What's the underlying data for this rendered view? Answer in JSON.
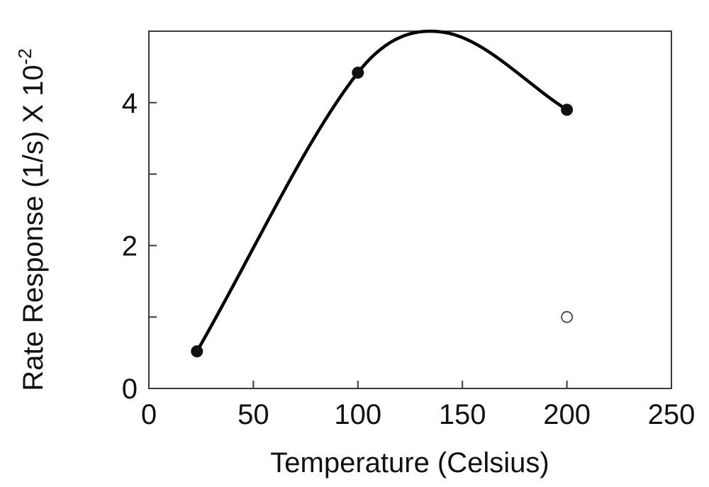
{
  "chart_data": {
    "type": "scatter",
    "title": "",
    "xlabel": "Temperature (Celsius)",
    "ylabel_main": "Rate Response (1/s) X 10",
    "ylabel_exponent": "-2",
    "xlim": [
      0,
      250
    ],
    "ylim": [
      0,
      5
    ],
    "x_ticks": [
      {
        "value": 0,
        "label": "0"
      },
      {
        "value": 50,
        "label": "50"
      },
      {
        "value": 100,
        "label": "100"
      },
      {
        "value": 150,
        "label": "150"
      },
      {
        "value": 200,
        "label": "200"
      },
      {
        "value": 250,
        "label": "250"
      }
    ],
    "y_ticks": [
      {
        "value": 0,
        "label": "0"
      },
      {
        "value": 1,
        "label": ""
      },
      {
        "value": 2,
        "label": "2"
      },
      {
        "value": 3,
        "label": ""
      },
      {
        "value": 4,
        "label": "4"
      },
      {
        "value": 5,
        "label": ""
      }
    ],
    "grid": false,
    "legend": "none",
    "series": [
      {
        "marker": "filled-circle",
        "color": "#111111",
        "points": [
          {
            "x": 23,
            "y": 0.52
          },
          {
            "x": 100,
            "y": 4.42
          },
          {
            "x": 200,
            "y": 3.9
          }
        ]
      },
      {
        "marker": "open-circle",
        "color": "#444444",
        "points": [
          {
            "x": 200,
            "y": 1.0
          }
        ]
      }
    ],
    "fit_curve": {
      "style": "smooth-solid",
      "color": "#000000",
      "points": [
        {
          "x": 23,
          "y": 0.52
        },
        {
          "x": 100,
          "y": 4.42
        },
        {
          "x": 142,
          "y": 4.98
        },
        {
          "x": 200,
          "y": 3.9
        }
      ]
    }
  }
}
